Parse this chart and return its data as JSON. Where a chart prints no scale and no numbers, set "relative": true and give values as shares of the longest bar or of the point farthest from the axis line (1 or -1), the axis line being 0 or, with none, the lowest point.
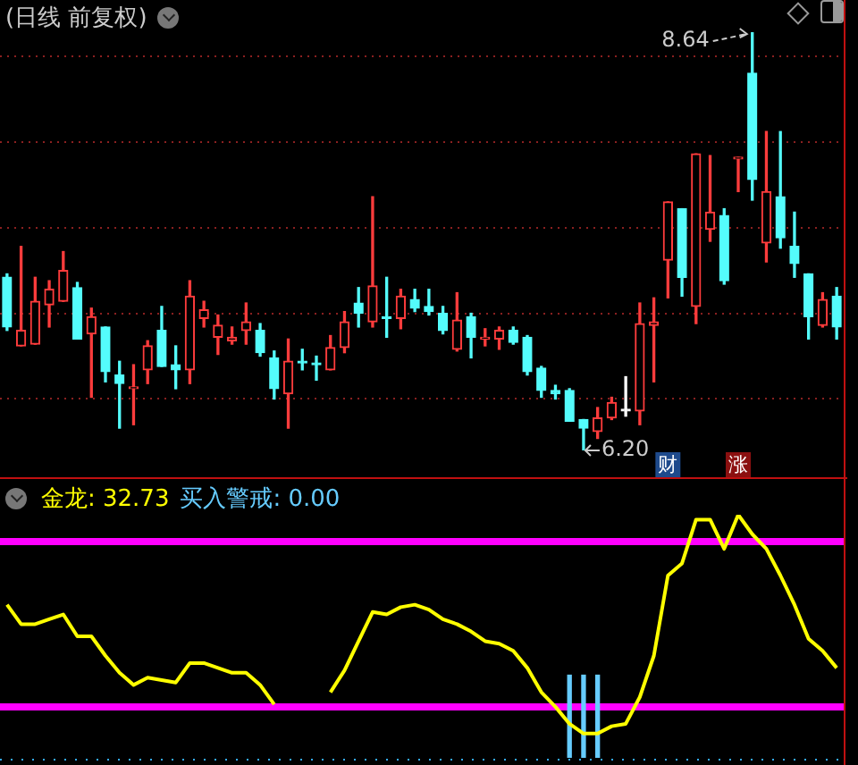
{
  "chart_data": [
    {
      "type": "candlestick",
      "title": "(日线 前复权)",
      "categories": [
        null,
        null,
        null,
        null,
        null,
        null,
        null,
        null,
        null,
        null,
        null,
        null,
        null,
        null,
        null,
        null,
        null,
        null,
        null,
        null,
        null,
        null,
        null,
        null,
        null,
        null,
        null,
        null,
        null,
        null,
        null,
        null,
        null,
        null,
        null,
        null,
        null,
        null,
        null,
        null,
        null,
        null,
        null,
        null,
        null,
        null,
        null,
        null,
        null,
        null,
        null,
        null,
        null,
        null,
        null,
        null,
        null,
        null,
        null,
        null
      ],
      "ohlc": [
        [
          7.21,
          7.23,
          6.9,
          6.92
        ],
        [
          6.81,
          7.39,
          6.81,
          6.9
        ],
        [
          6.82,
          7.21,
          6.82,
          7.07
        ],
        [
          7.05,
          7.19,
          6.92,
          7.14
        ],
        [
          7.07,
          7.36,
          7.07,
          7.25
        ],
        [
          7.15,
          7.18,
          6.85,
          6.85
        ],
        [
          6.88,
          7.03,
          6.51,
          6.98
        ],
        [
          6.92,
          6.92,
          6.6,
          6.66
        ],
        [
          6.64,
          6.72,
          6.33,
          6.59
        ],
        [
          6.56,
          6.7,
          6.35,
          6.57
        ],
        [
          6.67,
          6.84,
          6.59,
          6.81
        ],
        [
          6.9,
          7.04,
          6.69,
          6.69
        ],
        [
          6.7,
          6.81,
          6.56,
          6.67
        ],
        [
          6.67,
          7.19,
          6.59,
          7.1
        ],
        [
          6.97,
          7.07,
          6.92,
          7.02
        ],
        [
          6.86,
          6.99,
          6.76,
          6.93
        ],
        [
          6.84,
          6.92,
          6.82,
          6.86
        ],
        [
          6.9,
          7.06,
          6.82,
          6.95
        ],
        [
          6.9,
          6.94,
          6.75,
          6.77
        ],
        [
          6.74,
          6.78,
          6.5,
          6.56
        ],
        [
          6.53,
          6.85,
          6.33,
          6.72
        ],
        [
          6.72,
          6.79,
          6.67,
          6.71
        ],
        [
          6.71,
          6.75,
          6.61,
          6.7
        ],
        [
          6.67,
          6.87,
          6.67,
          6.8
        ],
        [
          6.8,
          7.01,
          6.77,
          6.95
        ],
        [
          7.06,
          7.15,
          6.92,
          7.0
        ],
        [
          6.95,
          7.68,
          6.92,
          7.16
        ],
        [
          6.98,
          7.21,
          6.86,
          6.97
        ],
        [
          6.97,
          7.14,
          6.91,
          7.1
        ],
        [
          7.08,
          7.14,
          7.01,
          7.03
        ],
        [
          7.04,
          7.14,
          6.99,
          7.01
        ],
        [
          7.0,
          7.04,
          6.88,
          6.9
        ],
        [
          6.79,
          7.12,
          6.78,
          6.96
        ],
        [
          6.98,
          7.0,
          6.74,
          6.86
        ],
        [
          6.85,
          6.91,
          6.81,
          6.86
        ],
        [
          6.85,
          6.92,
          6.79,
          6.9
        ],
        [
          6.9,
          6.92,
          6.82,
          6.83
        ],
        [
          6.86,
          6.87,
          6.64,
          6.66
        ],
        [
          6.68,
          6.69,
          6.51,
          6.55
        ],
        [
          6.55,
          6.58,
          6.5,
          6.53
        ],
        [
          6.55,
          6.56,
          6.37,
          6.37
        ],
        [
          6.38,
          6.38,
          6.2,
          6.33
        ],
        [
          6.31,
          6.45,
          6.27,
          6.39
        ],
        [
          6.39,
          6.51,
          6.38,
          6.48
        ],
        [
          6.43,
          6.63,
          6.4,
          6.43
        ],
        [
          6.43,
          7.06,
          6.35,
          6.94
        ],
        [
          6.93,
          7.09,
          6.6,
          6.95
        ],
        [
          7.31,
          7.65,
          7.09,
          7.65
        ],
        [
          7.61,
          7.61,
          7.1,
          7.21
        ],
        [
          7.04,
          7.93,
          6.94,
          7.93
        ],
        [
          7.49,
          7.92,
          7.42,
          7.59
        ],
        [
          7.57,
          7.61,
          7.17,
          7.19
        ],
        [
          7.9,
          7.91,
          7.71,
          7.91
        ],
        [
          8.4,
          8.64,
          7.66,
          7.78
        ],
        [
          7.41,
          8.06,
          7.3,
          7.71
        ],
        [
          7.68,
          8.06,
          7.38,
          7.44
        ],
        [
          7.39,
          7.59,
          7.21,
          7.29
        ],
        [
          7.23,
          7.23,
          6.85,
          6.98
        ],
        [
          6.93,
          7.12,
          6.92,
          7.08
        ],
        [
          7.1,
          7.15,
          6.85,
          6.92
        ]
      ],
      "colors": [
        "#54fcfc",
        "#ff3c3c",
        "#ff3c3c",
        "#ff3c3c",
        "#ff3c3c",
        "#54fcfc",
        "#ff3c3c",
        "#54fcfc",
        "#54fcfc",
        "#ff3c3c",
        "#ff3c3c",
        "#54fcfc",
        "#54fcfc",
        "#ff3c3c",
        "#ff3c3c",
        "#ff3c3c",
        "#ff3c3c",
        "#ff3c3c",
        "#54fcfc",
        "#54fcfc",
        "#ff3c3c",
        "#54fcfc",
        "#54fcfc",
        "#ff3c3c",
        "#ff3c3c",
        "#54fcfc",
        "#ff3c3c",
        "#54fcfc",
        "#ff3c3c",
        "#54fcfc",
        "#54fcfc",
        "#54fcfc",
        "#ff3c3c",
        "#54fcfc",
        "#ff3c3c",
        "#ff3c3c",
        "#54fcfc",
        "#54fcfc",
        "#54fcfc",
        "#54fcfc",
        "#54fcfc",
        "#54fcfc",
        "#ff3c3c",
        "#ff3c3c",
        "#ffffff",
        "#ff3c3c",
        "#ff3c3c",
        "#ff3c3c",
        "#54fcfc",
        "#ff3c3c",
        "#ff3c3c",
        "#54fcfc",
        "#ff3c3c",
        "#54fcfc",
        "#ff3c3c",
        "#54fcfc",
        "#54fcfc",
        "#54fcfc",
        "#ff3c3c",
        "#54fcfc"
      ],
      "yticks": [
        {
          "value": 6.5,
          "label": null
        },
        {
          "value": 7,
          "label": null
        },
        {
          "value": 7.5,
          "label": null
        },
        {
          "value": 8,
          "label": null
        },
        {
          "value": 8.5,
          "label": null
        }
      ],
      "grid": "y",
      "tick_labels": false,
      "annotations": [
        "8.64",
        "6.20",
        "财",
        "涨"
      ]
    },
    {
      "type": "line",
      "relative": true,
      "tick_labels": false,
      "categories": [
        null,
        null,
        null,
        null,
        null,
        null,
        null,
        null,
        null,
        null,
        null,
        null,
        null,
        null,
        null,
        null,
        null,
        null,
        null,
        null,
        null,
        null,
        null,
        null,
        null,
        null,
        null,
        null,
        null,
        null,
        null,
        null,
        null,
        null,
        null,
        null,
        null,
        null,
        null,
        null,
        null,
        null,
        null,
        null,
        null,
        null,
        null,
        null,
        null,
        null,
        null,
        null,
        null,
        null,
        null,
        null,
        null,
        null,
        null,
        null
      ],
      "series": [
        {
          "color": "#ffff00",
          "values": [
            0.63,
            0.55,
            0.55,
            0.57,
            0.59,
            0.5,
            0.5,
            0.42,
            0.35,
            0.3,
            0.33,
            0.32,
            0.31,
            0.39,
            0.39,
            0.37,
            0.35,
            0.35,
            0.3,
            0.22,
            null,
            null,
            null,
            0.27,
            0.36,
            0.48,
            0.6,
            0.59,
            0.62,
            0.63,
            0.61,
            0.57,
            0.55,
            0.52,
            0.48,
            0.47,
            0.44,
            0.37,
            0.27,
            0.21,
            0.14,
            0.1,
            0.1,
            0.13,
            0.14,
            0.25,
            0.42,
            0.75,
            0.8,
            0.98,
            0.98,
            0.86,
            1.0,
            0.92,
            0.86,
            0.75,
            0.63,
            0.49,
            0.44,
            0.37
          ]
        },
        {
          "type": "bar",
          "color": "#66ccff",
          "values": [
            null,
            null,
            null,
            null,
            null,
            null,
            null,
            null,
            null,
            null,
            null,
            null,
            null,
            null,
            null,
            null,
            null,
            null,
            null,
            null,
            null,
            null,
            null,
            null,
            null,
            null,
            null,
            null,
            null,
            null,
            null,
            null,
            null,
            null,
            null,
            null,
            null,
            null,
            null,
            null,
            0.34,
            0.34,
            0.34,
            null,
            null,
            null,
            null,
            null,
            null,
            null,
            null,
            null,
            null,
            null,
            null,
            null,
            null,
            null,
            null,
            null
          ]
        }
      ],
      "ref_lines": [
        {
          "axis": "y",
          "value": 0.89,
          "color": "#ff00ff"
        },
        {
          "axis": "y",
          "value": 0.21,
          "color": "#ff00ff"
        }
      ],
      "annotations": [
        "金龙: 32.73",
        "买入警戒: 0.00"
      ]
    }
  ]
}
